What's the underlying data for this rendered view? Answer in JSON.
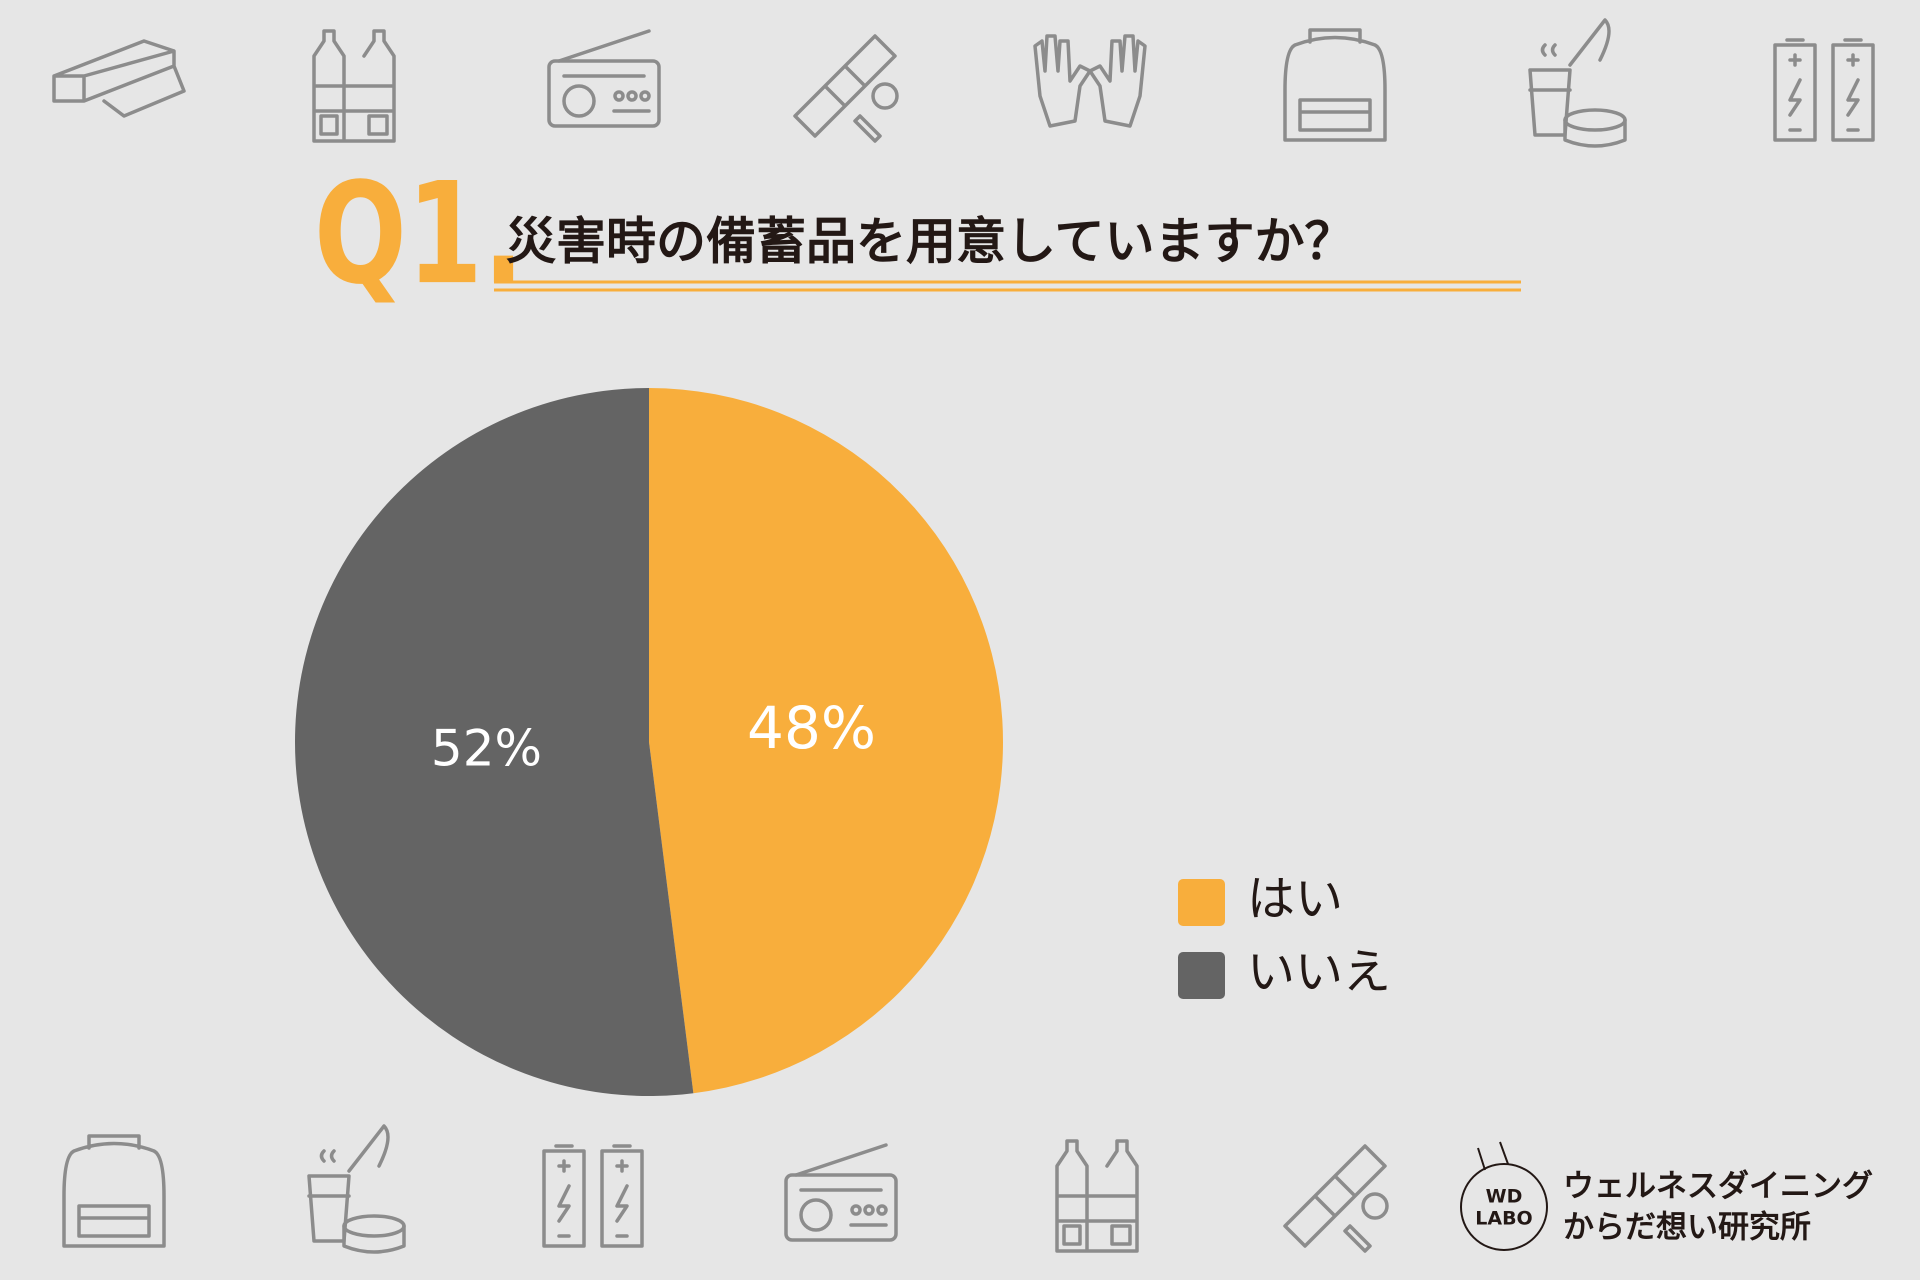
{
  "chart_data": {
    "type": "pie",
    "title_number": "Q1.",
    "title": "災害時の備蓄品を用意していますか？",
    "categories": [
      "はい",
      "いいえ"
    ],
    "values": [
      48,
      52
    ],
    "value_labels": [
      "48%",
      "52%"
    ],
    "colors": [
      "#f8ae3c",
      "#646464"
    ],
    "title_color": "#f8ae3c"
  },
  "branding": {
    "mark_lines": [
      "WD",
      "LABO"
    ],
    "name_lines": [
      "ウェルネスダイニング",
      "からだ想い研究所"
    ]
  }
}
